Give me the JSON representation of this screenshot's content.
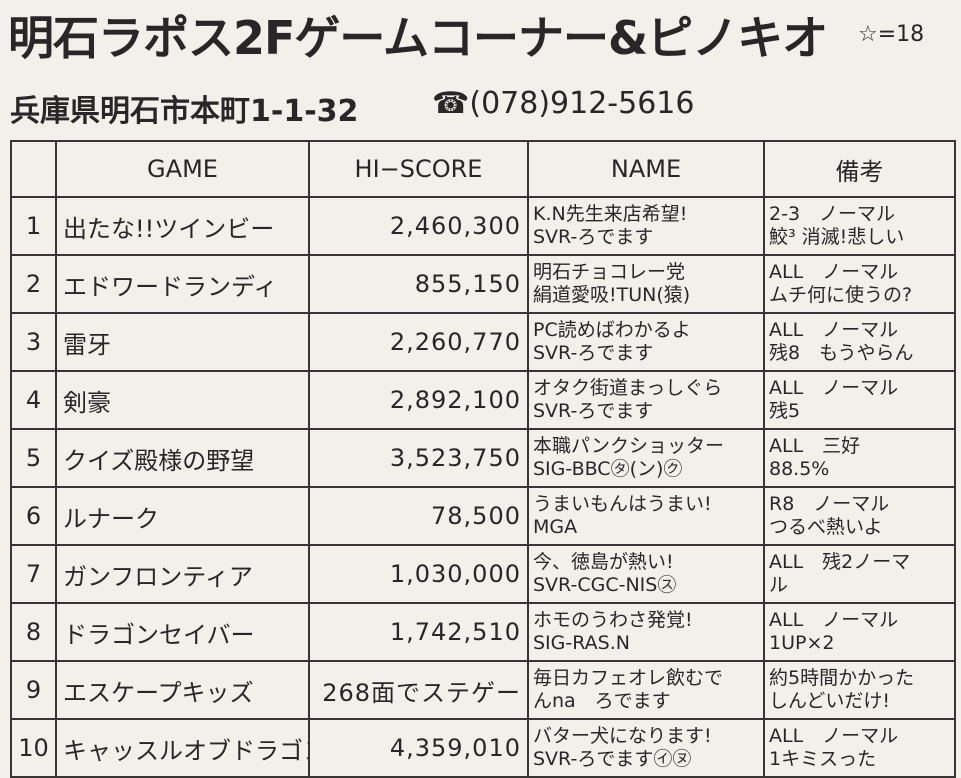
{
  "header": {
    "title": "明石ラポス2Fゲームコーナー&ピノキオ",
    "stars": "☆=18",
    "address": "兵庫県明石市本町1-1-32",
    "phone": "☎(078)912-5616"
  },
  "table": {
    "columns": [
      "GAME",
      "HI−SCORE",
      "NAME",
      "備考"
    ],
    "rows": [
      [
        "1",
        "出たな!!ツインビー",
        "2,460,300",
        [
          "K.N先生来店希望!",
          "SVR-ろでます"
        ],
        [
          "2-3　ノーマル",
          "鮫³ 消滅!悲しい"
        ]
      ],
      [
        "2",
        "エドワードランディ",
        "855,150",
        [
          "明石チョコレー党",
          "絹道愛吸!TUN(猿)"
        ],
        [
          "ALL　ノーマル",
          "ムチ何に使うの?"
        ]
      ],
      [
        "3",
        "雷牙",
        "2,260,770",
        [
          "PC読めばわかるよ",
          "SVR-ろでます"
        ],
        [
          "ALL　ノーマル",
          "残8　もうやらん"
        ]
      ],
      [
        "4",
        "剣豪",
        "2,892,100",
        [
          "オタク街道まっしぐら",
          "SVR-ろでます"
        ],
        [
          "ALL　ノーマル",
          "残5"
        ]
      ],
      [
        "5",
        "クイズ殿様の野望",
        "3,523,750",
        [
          "本職パンクショッター",
          "SIG-BBC㋟(ン)㋗"
        ],
        [
          "ALL　三好",
          "88.5%"
        ]
      ],
      [
        "6",
        "ルナーク",
        "78,500",
        [
          "うまいもんはうまい!",
          "MGA"
        ],
        [
          "R8　ノーマル",
          "つるべ熱いよ"
        ]
      ],
      [
        "7",
        "ガンフロンティア",
        "1,030,000",
        [
          "今、徳島が熱い!",
          "SVR-CGC-NIS㋜"
        ],
        [
          "ALL　残2ノーマ",
          "ル"
        ]
      ],
      [
        "8",
        "ドラゴンセイバー",
        "1,742,510",
        [
          "ホモのうわさ発覚!",
          "SIG-RAS.N"
        ],
        [
          "ALL　ノーマル",
          "1UP×2"
        ]
      ],
      [
        "9",
        "エスケープキッズ",
        "268面でステゲー",
        [
          "毎日カフェオレ飲むで",
          "んna　ろでます"
        ],
        [
          "約5時間かかった",
          "しんどいだけ!"
        ]
      ],
      [
        "10",
        "キャッスルオブドラゴン",
        "4,359,010",
        [
          "バター犬になります!",
          "SVR-ろでます㋑㋦"
        ],
        [
          "ALL　ノーマル",
          "1キミスった"
        ]
      ]
    ]
  }
}
